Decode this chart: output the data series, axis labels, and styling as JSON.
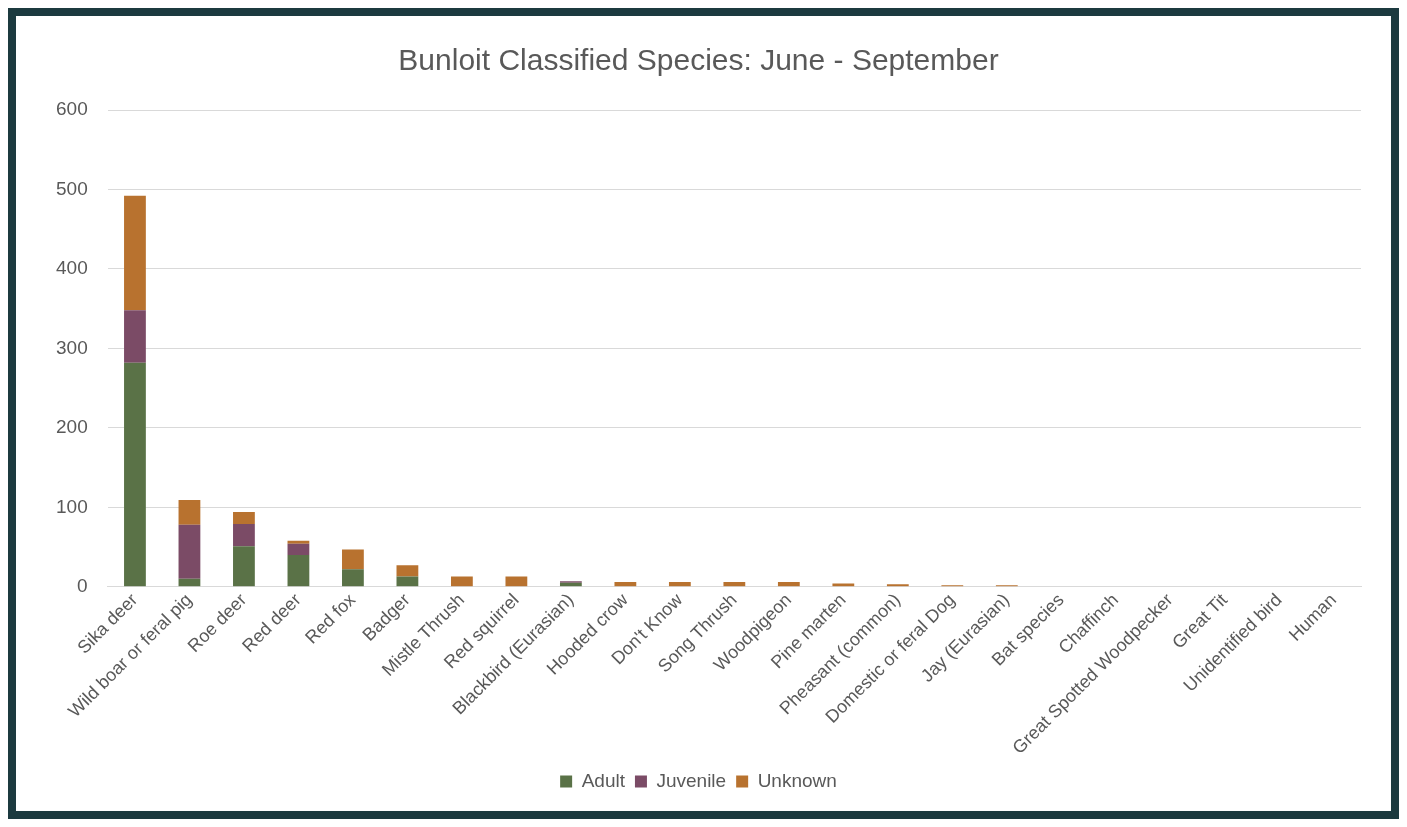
{
  "chart_data": {
    "type": "bar",
    "title": "Bunloit Classified Species: June - September",
    "stacked": true,
    "categories": [
      "Sika deer",
      "Wild boar or feral pig",
      "Roe deer",
      "Red deer",
      "Red fox",
      "Badger",
      "Mistle Thrush",
      "Red squirrel",
      "Blackbird (Eurasian)",
      "Hooded crow",
      "Don't Know",
      "Song Thrush",
      "Woodpigeon",
      "Pine marten",
      "Pheasant (common)",
      "Domestic or feral Dog",
      "Jay (Eurasian)",
      "Bat species",
      "Chaffinch",
      "Great Spotted Woodpecker",
      "Great Tit",
      "Unidentified bird",
      "Human"
    ],
    "series": [
      {
        "name": "Adult",
        "color": "#5a7247",
        "values": [
          282,
          10,
          51,
          40,
          22,
          13,
          0,
          0,
          5,
          0,
          0,
          0,
          0,
          0,
          0,
          0,
          0,
          0,
          0,
          0,
          0,
          0,
          0
        ]
      },
      {
        "name": "Juvenile",
        "color": "#7b4b66",
        "values": [
          66,
          68,
          28,
          14,
          0,
          0,
          0,
          0,
          2,
          0,
          0,
          0,
          0,
          0,
          0,
          0,
          0,
          0,
          0,
          0,
          0,
          0,
          0
        ]
      },
      {
        "name": "Unknown",
        "color": "#b8722f",
        "values": [
          144,
          31,
          15,
          4,
          25,
          14,
          13,
          13,
          0,
          6,
          6,
          6,
          6,
          4,
          3,
          2,
          2,
          0,
          0,
          0,
          0,
          0,
          0
        ]
      }
    ],
    "ylim": [
      0,
      600
    ],
    "yticks": [
      0,
      100,
      200,
      300,
      400,
      500,
      600
    ],
    "grid": "y",
    "legend": "bottom"
  }
}
